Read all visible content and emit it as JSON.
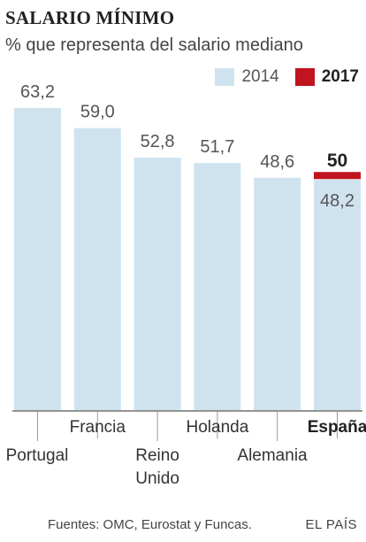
{
  "title": "SALARIO MÍNIMO",
  "subtitle": "% que representa del salario mediano",
  "legend": [
    {
      "label": "2014",
      "color": "#cfe3ef"
    },
    {
      "label": "2017",
      "color": "#c0141f"
    }
  ],
  "chart_data": {
    "type": "bar",
    "categories": [
      "Portugal",
      "Francia",
      "Reino Unido",
      "Holanda",
      "Alemania",
      "España"
    ],
    "category_lines": [
      [
        "Portugal"
      ],
      [
        "Francia"
      ],
      [
        "Reino",
        "Unido"
      ],
      [
        "Holanda"
      ],
      [
        "Alemania"
      ],
      [
        "España"
      ]
    ],
    "category_rows": [
      "low",
      "high",
      "low",
      "high",
      "low",
      "high"
    ],
    "highlight_category": "España",
    "series": [
      {
        "name": "2014",
        "values": [
          63.2,
          59.0,
          52.8,
          51.7,
          48.6,
          48.2
        ],
        "labels": [
          "63,2",
          "59,0",
          "52,8",
          "51,7",
          "48,6",
          "48,2"
        ],
        "color": "#cfe3ef"
      },
      {
        "name": "2017",
        "values": [
          null,
          null,
          null,
          null,
          null,
          50
        ],
        "labels": [
          "",
          "",
          "",
          "",
          "",
          "50"
        ],
        "color": "#c0141f"
      }
    ],
    "ylim": [
      0,
      65
    ],
    "grid": false
  },
  "footer": {
    "source": "Fuentes: OMC, Eurostat y Funcas.",
    "brand": "EL PAÍS"
  }
}
